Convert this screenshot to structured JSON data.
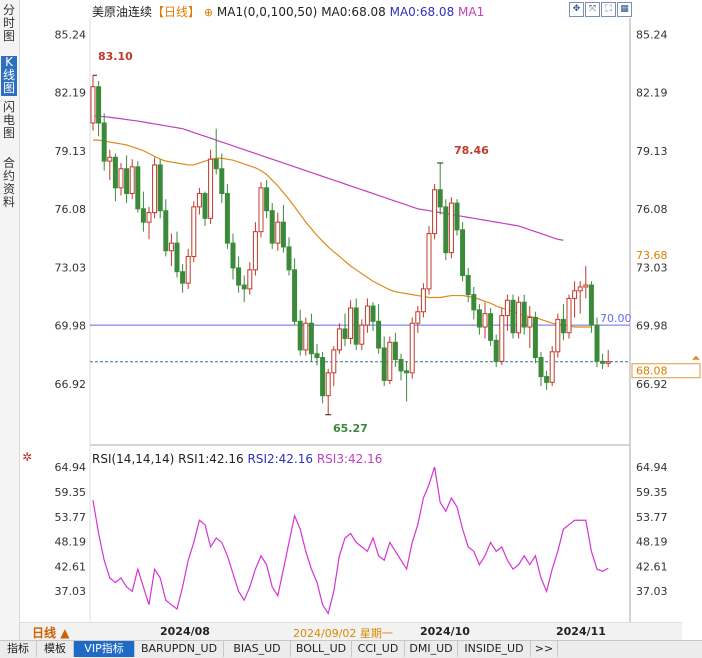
{
  "side_tabs": [
    {
      "label": "分时图"
    },
    {
      "label": "K线图"
    },
    {
      "label": "闪电图"
    },
    {
      "label": "合约资料"
    }
  ],
  "main_header": {
    "name": "美原油连续",
    "period": "【日线】",
    "ma_params": "MA1(0,0,100,50)",
    "ma0_label": "MA0:68.08",
    "ma0_label_2": "MA0:68.08",
    "ma1_label": "MA1"
  },
  "rsi_header": {
    "params": "RSI(14,14,14)",
    "rsi1": "RSI1:42.16",
    "rsi2": "RSI2:42.16",
    "rsi3": "RSI3:42.16"
  },
  "price_axis": {
    "ticks": [
      "85.24",
      "82.19",
      "79.13",
      "76.08",
      "73.03",
      "69.98",
      "66.92"
    ]
  },
  "rsi_axis": {
    "ticks": [
      "64.94",
      "59.35",
      "53.77",
      "48.19",
      "42.61",
      "37.03"
    ]
  },
  "markers": {
    "high1": "83.10",
    "high2": "78.46",
    "low": "65.27",
    "line_70": "70.00",
    "ma_tag": "73.68",
    "last_tag": "68.08"
  },
  "period_bar": {
    "period": "日线",
    "dates": [
      "2024/08",
      "2024/10",
      "2024/11"
    ],
    "selected": "2024/09/02 星期一"
  },
  "bottom_tabs": [
    "指标",
    "模板",
    "VIP指标",
    "BARUPDN_UD",
    "BIAS_UD",
    "BOLL_UD",
    "CCI_UD",
    "DMI_UD",
    "INSIDE_UD",
    ">>"
  ],
  "colors": {
    "up": "#c0392b",
    "down": "#3a8a3a",
    "ma_orange": "#e08a1e",
    "ma_magenta": "#c040c0",
    "rsi": "#d633d6",
    "blue_line": "#6a6ae0"
  },
  "chart_data": {
    "type": "candlestick",
    "price_ylim": [
      64.5,
      86.0
    ],
    "rsi_ylim": [
      31.0,
      67.0
    ],
    "candles": [
      [
        80.6,
        83.1,
        80.2,
        82.5
      ],
      [
        82.5,
        82.8,
        79.9,
        80.6
      ],
      [
        80.6,
        81.1,
        78.1,
        78.6
      ],
      [
        78.6,
        79.2,
        77.6,
        78.8
      ],
      [
        78.8,
        79.0,
        76.5,
        77.2
      ],
      [
        77.2,
        78.5,
        76.8,
        78.2
      ],
      [
        78.2,
        78.9,
        76.4,
        76.9
      ],
      [
        76.9,
        78.7,
        76.6,
        78.3
      ],
      [
        78.3,
        78.6,
        75.9,
        76.1
      ],
      [
        76.1,
        77.0,
        74.9,
        75.4
      ],
      [
        75.4,
        76.2,
        74.5,
        75.9
      ],
      [
        75.9,
        78.8,
        75.6,
        78.4
      ],
      [
        78.4,
        78.7,
        75.6,
        76.0
      ],
      [
        76.0,
        76.6,
        73.6,
        73.9
      ],
      [
        73.9,
        74.8,
        73.1,
        74.3
      ],
      [
        74.3,
        74.9,
        72.5,
        72.8
      ],
      [
        72.8,
        73.2,
        71.7,
        72.2
      ],
      [
        72.2,
        74.0,
        71.9,
        73.6
      ],
      [
        73.6,
        76.5,
        73.3,
        76.2
      ],
      [
        76.2,
        77.2,
        75.8,
        76.9
      ],
      [
        76.9,
        77.0,
        75.2,
        75.6
      ],
      [
        75.6,
        79.2,
        75.3,
        78.7
      ],
      [
        78.7,
        80.3,
        77.9,
        78.2
      ],
      [
        78.2,
        79.0,
        76.4,
        76.9
      ],
      [
        76.9,
        77.4,
        74.0,
        74.3
      ],
      [
        74.3,
        74.8,
        72.4,
        73.0
      ],
      [
        73.0,
        73.6,
        71.7,
        72.1
      ],
      [
        72.1,
        72.6,
        71.2,
        71.9
      ],
      [
        71.9,
        73.3,
        71.6,
        72.9
      ],
      [
        72.9,
        75.4,
        72.6,
        74.9
      ],
      [
        74.9,
        77.5,
        74.6,
        77.2
      ],
      [
        77.2,
        77.6,
        75.6,
        76.0
      ],
      [
        76.0,
        76.4,
        74.0,
        74.3
      ],
      [
        74.3,
        75.9,
        73.9,
        75.4
      ],
      [
        75.4,
        76.3,
        73.8,
        74.1
      ],
      [
        74.1,
        74.6,
        72.6,
        72.9
      ],
      [
        72.9,
        73.5,
        70.0,
        70.2
      ],
      [
        70.2,
        70.8,
        68.4,
        68.7
      ],
      [
        68.7,
        70.4,
        68.4,
        70.1
      ],
      [
        70.1,
        70.6,
        68.1,
        68.5
      ],
      [
        68.5,
        69.0,
        67.9,
        68.3
      ],
      [
        68.3,
        68.6,
        65.9,
        66.3
      ],
      [
        66.3,
        67.7,
        65.3,
        67.5
      ],
      [
        67.5,
        68.9,
        66.8,
        68.7
      ],
      [
        68.7,
        70.1,
        68.5,
        69.8
      ],
      [
        69.8,
        70.6,
        68.9,
        69.3
      ],
      [
        69.3,
        71.3,
        69.0,
        70.9
      ],
      [
        70.9,
        71.4,
        68.7,
        69.0
      ],
      [
        69.0,
        70.3,
        68.7,
        70.0
      ],
      [
        70.0,
        71.4,
        69.6,
        71.0
      ],
      [
        71.0,
        71.2,
        69.7,
        70.2
      ],
      [
        70.2,
        71.1,
        68.5,
        68.8
      ],
      [
        68.8,
        69.4,
        66.8,
        67.1
      ],
      [
        67.1,
        69.4,
        66.9,
        69.1
      ],
      [
        69.1,
        69.6,
        67.8,
        68.2
      ],
      [
        68.2,
        68.5,
        67.1,
        67.6
      ],
      [
        67.6,
        68.1,
        66.0,
        67.5
      ],
      [
        67.5,
        70.4,
        67.2,
        70.1
      ],
      [
        70.1,
        71.0,
        69.6,
        70.7
      ],
      [
        70.7,
        72.2,
        70.4,
        71.9
      ],
      [
        71.9,
        75.2,
        71.6,
        74.8
      ],
      [
        74.8,
        77.4,
        74.5,
        77.1
      ],
      [
        77.1,
        78.5,
        75.8,
        76.2
      ],
      [
        76.2,
        76.6,
        73.4,
        73.8
      ],
      [
        73.8,
        76.7,
        73.5,
        76.4
      ],
      [
        76.4,
        76.6,
        74.7,
        75.0
      ],
      [
        75.0,
        75.4,
        72.3,
        72.6
      ],
      [
        72.6,
        73.0,
        71.2,
        71.6
      ],
      [
        71.6,
        72.0,
        70.3,
        70.8
      ],
      [
        70.8,
        71.1,
        69.5,
        69.9
      ],
      [
        69.9,
        71.2,
        69.3,
        70.6
      ],
      [
        70.6,
        70.9,
        68.9,
        69.2
      ],
      [
        69.2,
        69.5,
        67.8,
        68.1
      ],
      [
        68.1,
        70.9,
        67.9,
        70.5
      ],
      [
        70.5,
        71.6,
        69.7,
        71.3
      ],
      [
        71.3,
        71.6,
        69.3,
        69.6
      ],
      [
        69.6,
        71.5,
        69.3,
        71.2
      ],
      [
        71.2,
        71.6,
        69.5,
        69.9
      ],
      [
        69.9,
        71.0,
        68.8,
        70.4
      ],
      [
        70.4,
        70.7,
        68.0,
        68.3
      ],
      [
        68.3,
        68.6,
        66.8,
        67.3
      ],
      [
        67.3,
        67.6,
        66.6,
        67.0
      ],
      [
        67.0,
        68.9,
        66.8,
        68.6
      ],
      [
        68.6,
        70.6,
        68.3,
        70.3
      ],
      [
        70.3,
        71.1,
        69.2,
        69.6
      ],
      [
        69.6,
        71.6,
        69.3,
        71.4
      ],
      [
        71.4,
        72.3,
        70.4,
        71.8
      ],
      [
        71.8,
        72.3,
        70.6,
        72.0
      ],
      [
        72.0,
        73.1,
        71.4,
        72.1
      ],
      [
        72.1,
        72.3,
        69.6,
        70.0
      ],
      [
        70.0,
        70.4,
        67.8,
        68.1
      ],
      [
        68.1,
        68.5,
        67.7,
        68.0
      ],
      [
        68.0,
        68.7,
        67.8,
        68.08
      ]
    ],
    "ma_orange": [
      79.7,
      79.7,
      79.65,
      79.6,
      79.55,
      79.5,
      79.45,
      79.35,
      79.25,
      79.15,
      79.0,
      78.85,
      78.7,
      78.6,
      78.55,
      78.5,
      78.45,
      78.4,
      78.4,
      78.5,
      78.6,
      78.7,
      78.75,
      78.75,
      78.7,
      78.65,
      78.55,
      78.45,
      78.35,
      78.25,
      78.1,
      77.9,
      77.6,
      77.3,
      76.95,
      76.6,
      76.2,
      75.8,
      75.4,
      75.05,
      74.7,
      74.4,
      74.1,
      73.85,
      73.6,
      73.35,
      73.1,
      72.9,
      72.7,
      72.5,
      72.3,
      72.15,
      72.0,
      71.85,
      71.75,
      71.7,
      71.65,
      71.6,
      71.55,
      71.5,
      71.45,
      71.45,
      71.45,
      71.5,
      71.55,
      71.55,
      71.55,
      71.5,
      71.45,
      71.35,
      71.25,
      71.15,
      71.0,
      70.9,
      70.8,
      70.7,
      70.6,
      70.5,
      70.45,
      70.4,
      70.3,
      70.2,
      70.1,
      70.05,
      70.0,
      69.95,
      69.9,
      69.9,
      69.9,
      69.9
    ],
    "ma_magenta": [
      80.95,
      80.95,
      80.93,
      80.9,
      80.86,
      80.82,
      80.78,
      80.74,
      80.7,
      80.65,
      80.6,
      80.55,
      80.5,
      80.45,
      80.4,
      80.35,
      80.3,
      80.2,
      80.1,
      80.0,
      79.9,
      79.8,
      79.7,
      79.6,
      79.5,
      79.4,
      79.3,
      79.2,
      79.1,
      79.0,
      78.9,
      78.8,
      78.7,
      78.6,
      78.5,
      78.4,
      78.3,
      78.2,
      78.1,
      78.0,
      77.9,
      77.8,
      77.7,
      77.6,
      77.5,
      77.4,
      77.3,
      77.2,
      77.1,
      77.0,
      76.9,
      76.8,
      76.7,
      76.6,
      76.5,
      76.4,
      76.3,
      76.2,
      76.1,
      76.05,
      76.0,
      75.95,
      75.9,
      75.85,
      75.8,
      75.75,
      75.7,
      75.65,
      75.6,
      75.55,
      75.5,
      75.45,
      75.4,
      75.35,
      75.3,
      75.25,
      75.2,
      75.1,
      75.0,
      74.9,
      74.8,
      74.7,
      74.6,
      74.5,
      74.45
    ],
    "rsi": [
      57.5,
      50,
      44,
      40,
      39,
      40,
      38,
      37,
      42,
      38,
      34,
      42,
      40,
      35,
      34,
      33,
      38,
      44,
      48,
      53,
      52,
      47,
      49,
      48,
      45,
      41,
      37,
      35,
      38,
      42,
      45,
      43,
      38,
      36,
      42,
      48,
      54,
      51,
      46,
      42,
      39,
      34,
      32,
      37,
      45,
      49,
      50,
      48,
      47,
      46,
      49,
      45,
      44,
      48,
      46,
      44,
      42,
      48,
      52,
      58,
      61,
      65,
      57,
      55,
      58,
      56,
      51,
      47,
      46,
      43,
      45,
      48,
      46,
      47,
      44,
      42,
      43,
      45,
      43,
      45,
      40,
      37,
      42,
      46,
      51,
      52,
      53,
      53,
      53,
      46,
      42,
      41.5,
      42.2
    ],
    "horizontal_line": 70.0
  }
}
